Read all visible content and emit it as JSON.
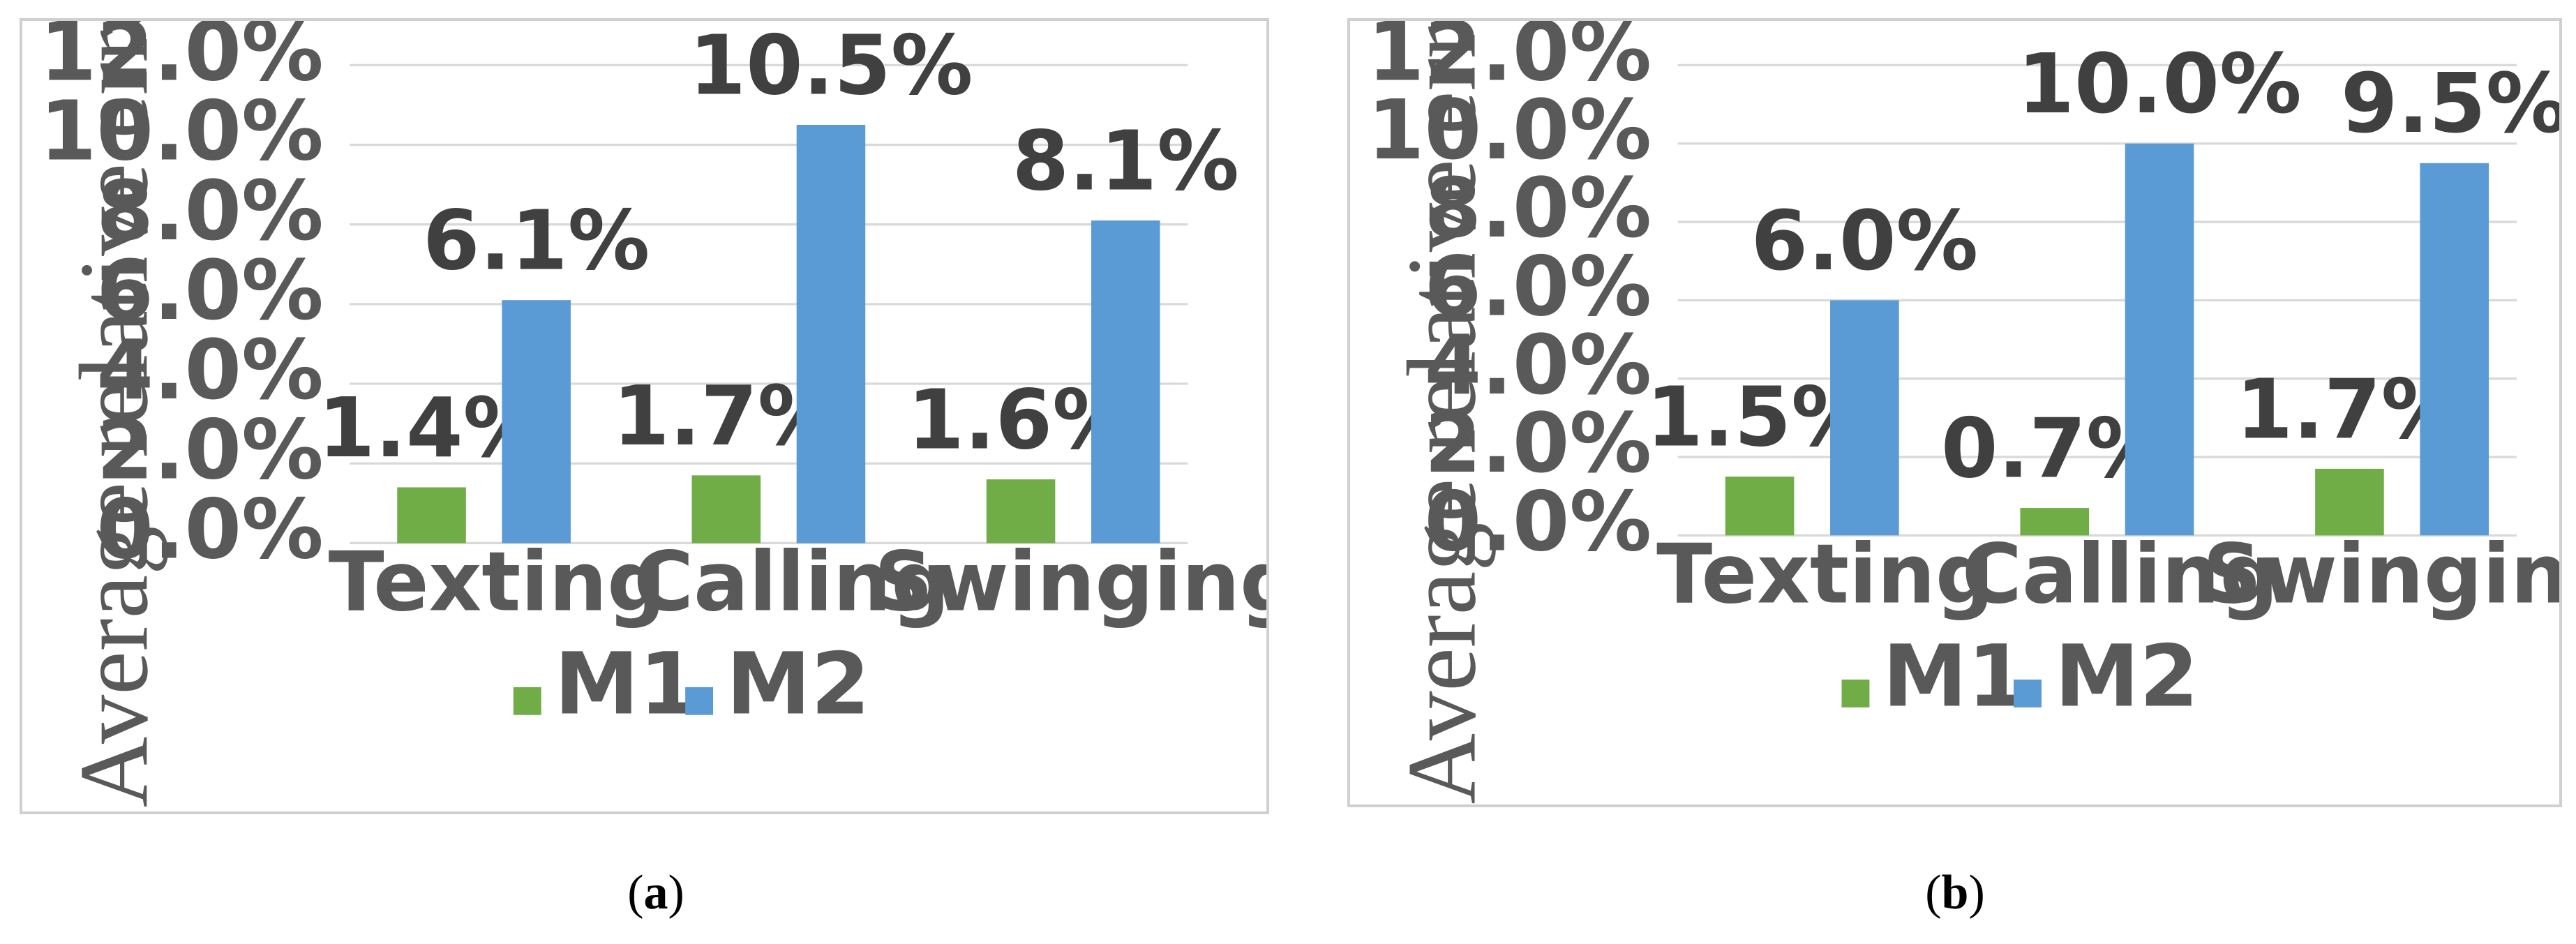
{
  "chart_data": [
    {
      "type": "bar",
      "panel": "a",
      "caption": "a",
      "ylabel": "Average relative error(%)",
      "categories": [
        "Texting",
        "Calling",
        "Swinging"
      ],
      "series": [
        {
          "name": "M1",
          "color": "#70ad47",
          "values": [
            1.4,
            1.7,
            1.6
          ],
          "labels": [
            "1.4%",
            "1.7%",
            "1.6%"
          ]
        },
        {
          "name": "M2",
          "color": "#5b9bd5",
          "values": [
            6.1,
            10.5,
            8.1
          ],
          "labels": [
            "6.1%",
            "10.5%",
            "8.1%"
          ]
        }
      ],
      "ylim": [
        0,
        12
      ],
      "yticks": [
        "0.0%",
        "2.0%",
        "4.0%",
        "6.0%",
        "8.0%",
        "10.0%",
        "12.0%"
      ],
      "grid": true,
      "legend": "bottom"
    },
    {
      "type": "bar",
      "panel": "b",
      "caption": "b",
      "ylabel": "Average relative error(%)",
      "categories": [
        "Texting",
        "Calling",
        "Swinging"
      ],
      "series": [
        {
          "name": "M1",
          "color": "#70ad47",
          "values": [
            1.5,
            0.7,
            1.7
          ],
          "labels": [
            "1.5%",
            "0.7%",
            "1.7%"
          ]
        },
        {
          "name": "M2",
          "color": "#5b9bd5",
          "values": [
            6.0,
            10.0,
            9.5
          ],
          "labels": [
            "6.0%",
            "10.0%",
            "9.5%"
          ]
        }
      ],
      "ylim": [
        0,
        12
      ],
      "yticks": [
        "0.0%",
        "2.0%",
        "4.0%",
        "6.0%",
        "8.0%",
        "10.0%",
        "12.0%"
      ],
      "grid": true,
      "legend": "bottom"
    }
  ]
}
